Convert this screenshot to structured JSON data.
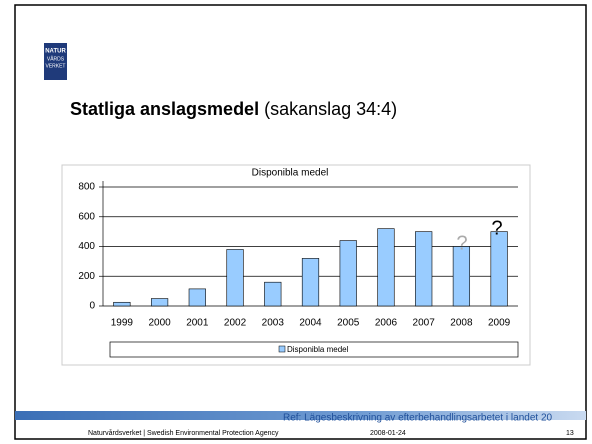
{
  "logo": {
    "lines": [
      "NATUR",
      "VÅRDS",
      "VERKET"
    ]
  },
  "heading": {
    "bold": "Statliga anslagsmedel",
    "normal": "(sakanslag 34:4)"
  },
  "chart_data": {
    "type": "bar",
    "title": "Disponibla medel",
    "categories": [
      "1999",
      "2000",
      "2001",
      "2002",
      "2003",
      "2004",
      "2005",
      "2006",
      "2007",
      "2008",
      "2009"
    ],
    "series": [
      {
        "name": "Disponibla medel",
        "color": "#99ccff",
        "values": [
          25,
          50,
          115,
          380,
          160,
          320,
          440,
          520,
          500,
          400,
          500
        ]
      }
    ],
    "ylim": [
      0,
      800
    ],
    "yticks": [
      0,
      200,
      400,
      600,
      800
    ],
    "grid": true,
    "legend": "bottom",
    "annotations": [
      "?",
      "?"
    ]
  },
  "footer": {
    "ref": "Ref: Lägesbeskrivning av efterbehandlingsarbetet i landet 20",
    "agency": "Naturvårdsverket | Swedish Environmental Protection Agency",
    "date": "2008-01-24",
    "page": "13"
  }
}
